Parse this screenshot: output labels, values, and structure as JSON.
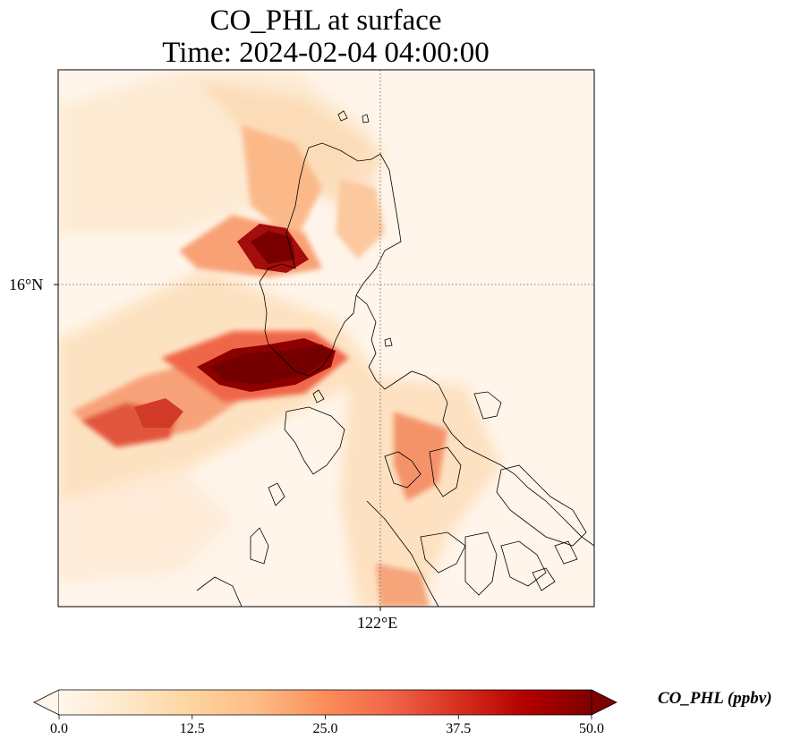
{
  "title_line1": "CO_PHL at surface",
  "title_line2": "Time: 2024-02-04 04:00:00",
  "map": {
    "lat_tick_label": "16°N",
    "lon_tick_label": "122°E",
    "gridlines": "dotted",
    "colormap": "OrRd"
  },
  "colorbar": {
    "label": "CO_PHL (ppbv)",
    "ticks": [
      "0.0",
      "12.5",
      "25.0",
      "37.5",
      "50.0"
    ],
    "min": 0,
    "max": 50,
    "extend": "both",
    "colors": [
      "#fff7ec",
      "#fee8c8",
      "#fdd49e",
      "#fdbb84",
      "#fc8d59",
      "#ef6548",
      "#d7301f",
      "#b30000",
      "#7f0000"
    ]
  }
}
